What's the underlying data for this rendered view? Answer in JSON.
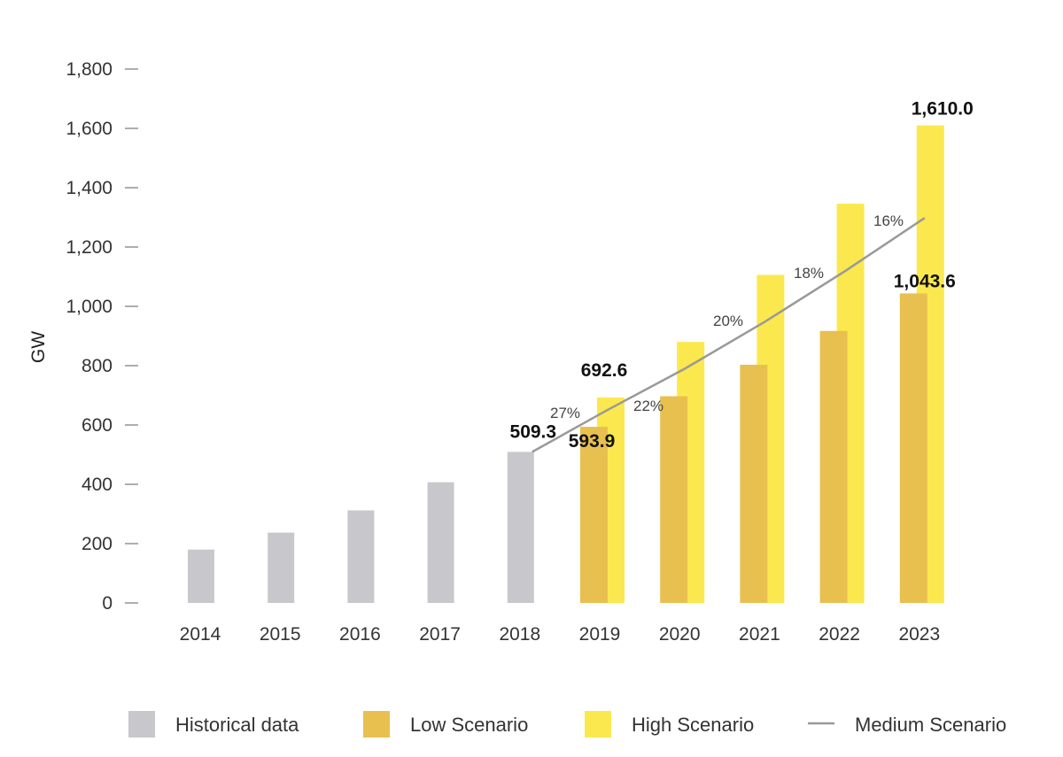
{
  "chart_data": {
    "type": "bar",
    "categories": [
      "2014",
      "2015",
      "2016",
      "2017",
      "2018",
      "2019",
      "2020",
      "2021",
      "2022",
      "2023"
    ],
    "ylabel": "GW",
    "ylim": [
      0,
      1800
    ],
    "yticks": [
      "0",
      "200",
      "400",
      "600",
      "800",
      "1,000",
      "1,200",
      "1,400",
      "1,600",
      "1,800"
    ],
    "grid": false,
    "legend_position": "bottom",
    "colors": {
      "historical": "#c8c8cc",
      "low": "#e8c050",
      "high": "#fbe84e",
      "medium": "#999999"
    },
    "series": [
      {
        "name": "Historical data",
        "type": "bar",
        "values": [
          180,
          237,
          312,
          407,
          509.3,
          null,
          null,
          null,
          null,
          null
        ]
      },
      {
        "name": "Low Scenario",
        "type": "bar",
        "values": [
          null,
          null,
          null,
          null,
          null,
          593.9,
          697,
          803,
          917,
          1043.6
        ]
      },
      {
        "name": "High Scenario",
        "type": "bar",
        "values": [
          null,
          null,
          null,
          null,
          null,
          692.6,
          880,
          1106,
          1346,
          1610.0
        ]
      },
      {
        "name": "Medium Scenario",
        "type": "line",
        "values": [
          null,
          null,
          null,
          null,
          509.3,
          646,
          790,
          948,
          1118,
          1298
        ]
      }
    ],
    "data_labels": [
      {
        "category": "2018",
        "text": "509.3"
      },
      {
        "category": "2019",
        "series": "High Scenario",
        "text": "692.6"
      },
      {
        "category": "2019",
        "series": "Low Scenario",
        "text": "593.9"
      },
      {
        "category": "2023",
        "series": "High Scenario",
        "text": "1,610.0"
      },
      {
        "category": "2023",
        "series": "Low Scenario",
        "text": "1,043.6"
      }
    ],
    "growth_labels": [
      {
        "between": [
          "2018",
          "2019"
        ],
        "text": "27%"
      },
      {
        "between": [
          "2019",
          "2020"
        ],
        "text": "22%"
      },
      {
        "between": [
          "2020",
          "2021"
        ],
        "text": "20%"
      },
      {
        "between": [
          "2021",
          "2022"
        ],
        "text": "18%"
      },
      {
        "between": [
          "2022",
          "2023"
        ],
        "text": "16%"
      }
    ],
    "legend": [
      "Historical data",
      "Low Scenario",
      "High Scenario",
      "Medium Scenario"
    ]
  }
}
